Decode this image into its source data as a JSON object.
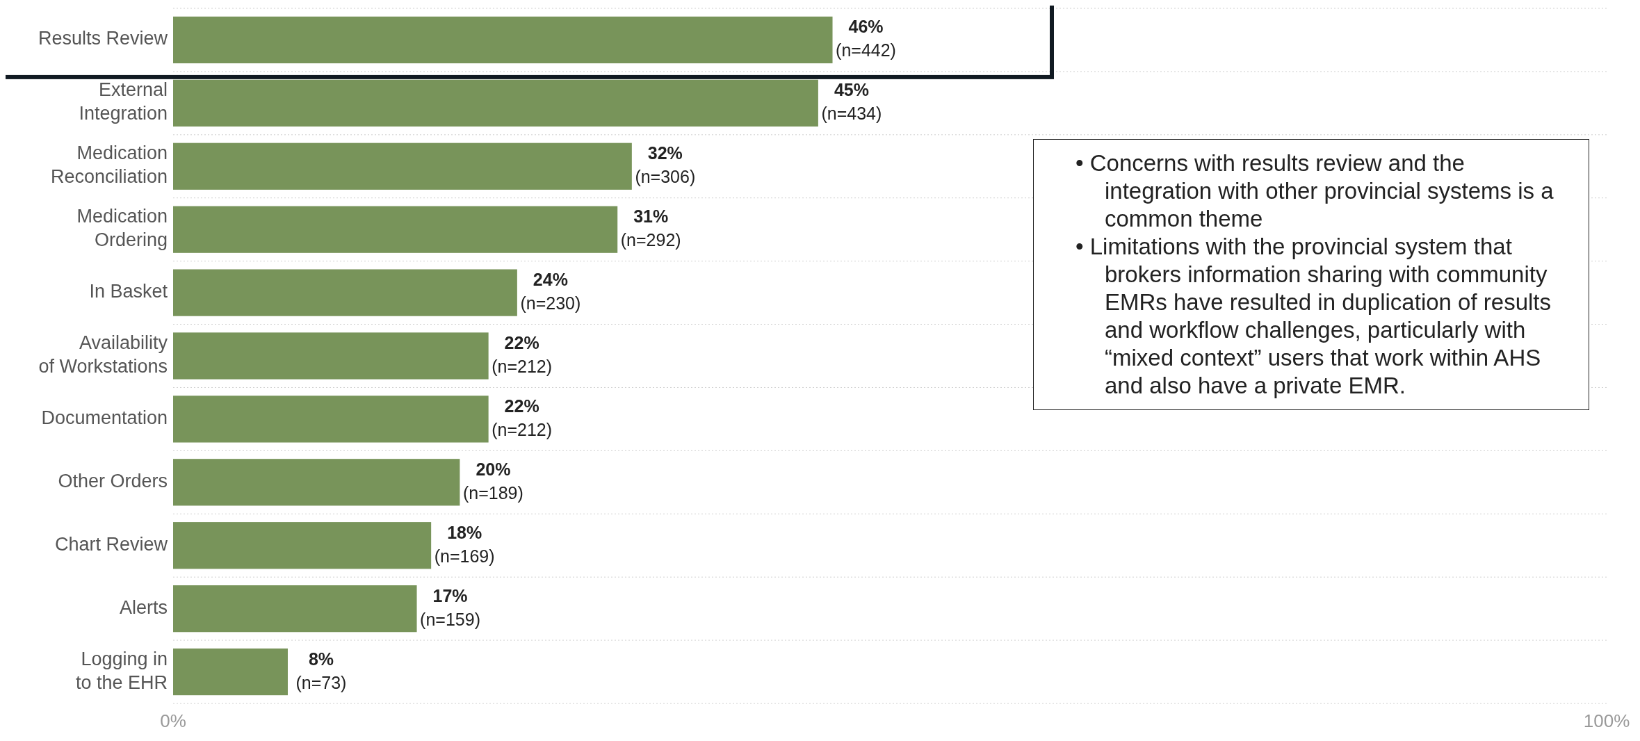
{
  "chart_data": {
    "type": "bar",
    "orientation": "horizontal",
    "categories": [
      "Results Review",
      "External Integration",
      "Medication Reconciliation",
      "Medication Ordering",
      "In Basket",
      "Availability of Workstations",
      "Documentation",
      "Other Orders",
      "Chart Review",
      "Alerts",
      "Logging in to the EHR"
    ],
    "values": [
      46,
      45,
      32,
      31,
      24,
      22,
      22,
      20,
      18,
      17,
      8
    ],
    "value_labels": [
      "46%\n(n=442)",
      "45%\n(n=434)",
      "32%\n(n=306)",
      "31%\n(n=292)",
      "24%\n(n=230)",
      "22%\n(n=212)",
      "22%\n(n=212)",
      "20%\n(n=189)",
      "18%\n(n=169)",
      "17%\n(n=159)",
      "8%\n(n=73)"
    ],
    "color": "#78945a",
    "xlim": [
      0,
      100
    ],
    "xticks": [
      {
        "value": 0,
        "label": "0%"
      },
      {
        "value": 100,
        "label": "100%"
      }
    ],
    "grid": false,
    "annotations": [
      "• Concerns with results review and the integration with other provincial systems is a common theme",
      "• Limitations with the provincial system that brokers information sharing with community EMRs have resulted in duplication of results and workflow challenges, particularly with “mixed context” users that work within AHS and also have a private EMR."
    ]
  }
}
